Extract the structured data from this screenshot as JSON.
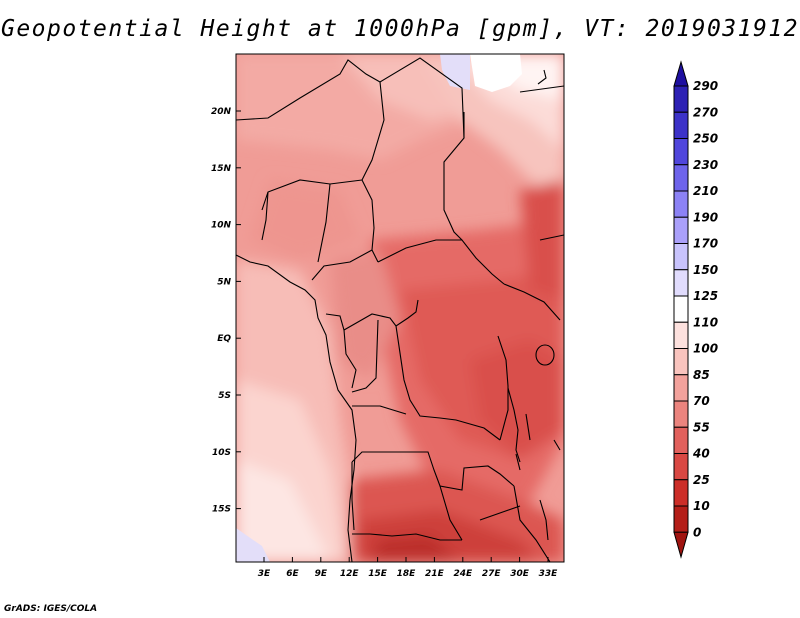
{
  "title": "Geopotential Height at 1000hPa [gpm], VT: 2019031912",
  "credit": "GrADS: IGES/COLA",
  "map": {
    "lat_ticks": [
      "20N",
      "15N",
      "10N",
      "5N",
      "EQ",
      "5S",
      "10S",
      "15S"
    ],
    "lon_ticks": [
      "3E",
      "6E",
      "9E",
      "12E",
      "15E",
      "18E",
      "21E",
      "24E",
      "27E",
      "30E",
      "33E"
    ]
  },
  "colorbar": {
    "levels": [
      "290",
      "270",
      "250",
      "230",
      "210",
      "190",
      "170",
      "150",
      "125",
      "110",
      "100",
      "85",
      "70",
      "55",
      "40",
      "25",
      "10",
      "0"
    ],
    "colors": [
      "#1e0fa0",
      "#2d21b4",
      "#3c32c8",
      "#5046dc",
      "#6e64eb",
      "#8c82f5",
      "#aaa0fa",
      "#c8c3fc",
      "#e1dcfd",
      "#ffffff",
      "#fde1de",
      "#f9c4be",
      "#f3a29c",
      "#eb847e",
      "#e2615d",
      "#d94843",
      "#cc2e28",
      "#b41e18",
      "#a01410"
    ]
  }
}
